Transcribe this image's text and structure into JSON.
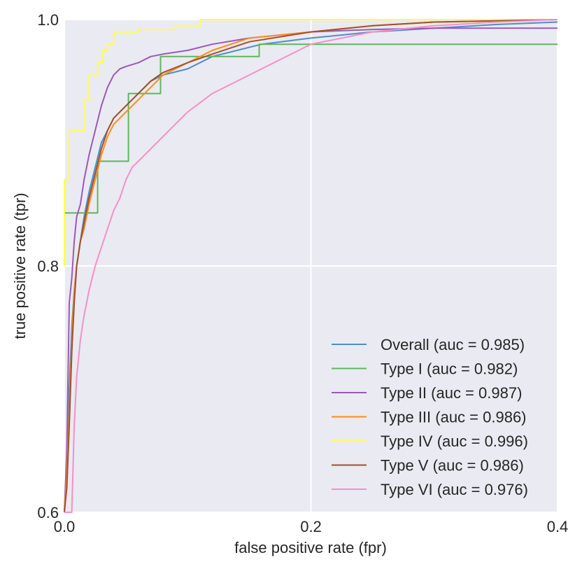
{
  "chart_data": {
    "type": "line",
    "title": "",
    "xlabel": "false positive rate (fpr)",
    "ylabel": "true positive rate (tpr)",
    "xlim": [
      0.0,
      0.4
    ],
    "ylim": [
      0.6,
      1.0
    ],
    "xticks": [
      0.0,
      0.2,
      0.4
    ],
    "xtick_labels": [
      "0.0",
      "0.2",
      "0.4"
    ],
    "yticks": [
      0.6,
      0.8,
      1.0
    ],
    "ytick_labels": [
      "0.6",
      "0.8",
      "1.0"
    ],
    "grid": true,
    "background": "#eaeaf2",
    "legend_position": "lower-right",
    "series": [
      {
        "name": "Overall (auc = 0.985)",
        "color": "#4c8fc9",
        "x": [
          0.0,
          0.002,
          0.004,
          0.006,
          0.008,
          0.01,
          0.013,
          0.016,
          0.02,
          0.025,
          0.03,
          0.035,
          0.04,
          0.05,
          0.06,
          0.07,
          0.08,
          0.1,
          0.12,
          0.14,
          0.16,
          0.2,
          0.25,
          0.3,
          0.35,
          0.4
        ],
        "y": [
          0.6,
          0.64,
          0.7,
          0.75,
          0.78,
          0.8,
          0.82,
          0.84,
          0.86,
          0.88,
          0.9,
          0.91,
          0.92,
          0.93,
          0.94,
          0.95,
          0.955,
          0.96,
          0.97,
          0.975,
          0.98,
          0.985,
          0.99,
          0.993,
          0.996,
          0.998
        ]
      },
      {
        "name": "Type I (auc = 0.982)",
        "color": "#5cb85c",
        "x": [
          0.0,
          0.0,
          0.027,
          0.027,
          0.052,
          0.052,
          0.078,
          0.078,
          0.11,
          0.11,
          0.158,
          0.158,
          0.2,
          0.2,
          0.4
        ],
        "y": [
          0.8,
          0.843,
          0.843,
          0.885,
          0.885,
          0.94,
          0.94,
          0.97,
          0.97,
          0.97,
          0.97,
          0.98,
          0.98,
          0.98,
          0.98
        ]
      },
      {
        "name": "Type II (auc = 0.987)",
        "color": "#9b59b6",
        "x": [
          0.0,
          0.002,
          0.004,
          0.006,
          0.008,
          0.01,
          0.013,
          0.016,
          0.02,
          0.025,
          0.03,
          0.035,
          0.04,
          0.045,
          0.05,
          0.06,
          0.07,
          0.08,
          0.1,
          0.12,
          0.15,
          0.2,
          0.25,
          0.3,
          0.4
        ],
        "y": [
          0.6,
          0.65,
          0.77,
          0.79,
          0.82,
          0.84,
          0.85,
          0.87,
          0.89,
          0.91,
          0.93,
          0.945,
          0.955,
          0.96,
          0.962,
          0.965,
          0.97,
          0.972,
          0.975,
          0.98,
          0.985,
          0.99,
          0.992,
          0.993,
          0.993
        ]
      },
      {
        "name": "Type III (auc = 0.986)",
        "color": "#ff8c1a",
        "x": [
          0.0,
          0.002,
          0.004,
          0.006,
          0.008,
          0.01,
          0.013,
          0.016,
          0.02,
          0.025,
          0.03,
          0.035,
          0.04,
          0.05,
          0.06,
          0.07,
          0.08,
          0.1,
          0.12,
          0.15,
          0.2,
          0.25,
          0.3,
          0.4
        ],
        "y": [
          0.6,
          0.63,
          0.68,
          0.74,
          0.78,
          0.8,
          0.82,
          0.83,
          0.85,
          0.87,
          0.89,
          0.905,
          0.915,
          0.925,
          0.935,
          0.945,
          0.955,
          0.965,
          0.975,
          0.985,
          0.99,
          0.995,
          0.998,
          1.0
        ]
      },
      {
        "name": "Type IV (auc = 0.996)",
        "color": "#ffff4d",
        "x": [
          0.0,
          0.0,
          0.004,
          0.004,
          0.008,
          0.008,
          0.016,
          0.016,
          0.02,
          0.02,
          0.027,
          0.027,
          0.031,
          0.031,
          0.035,
          0.035,
          0.04,
          0.04,
          0.06,
          0.06,
          0.09,
          0.09,
          0.11,
          0.11,
          0.4
        ],
        "y": [
          0.8,
          0.87,
          0.87,
          0.91,
          0.91,
          0.91,
          0.91,
          0.935,
          0.935,
          0.955,
          0.955,
          0.965,
          0.965,
          0.975,
          0.975,
          0.98,
          0.98,
          0.99,
          0.99,
          0.992,
          0.992,
          0.995,
          0.995,
          1.0,
          1.0
        ]
      },
      {
        "name": "Type V (auc = 0.986)",
        "color": "#a0522d",
        "x": [
          0.0,
          0.002,
          0.004,
          0.006,
          0.008,
          0.01,
          0.013,
          0.016,
          0.02,
          0.025,
          0.03,
          0.035,
          0.04,
          0.05,
          0.06,
          0.07,
          0.08,
          0.1,
          0.12,
          0.15,
          0.2,
          0.25,
          0.3,
          0.4
        ],
        "y": [
          0.6,
          0.62,
          0.67,
          0.73,
          0.77,
          0.8,
          0.82,
          0.835,
          0.855,
          0.875,
          0.895,
          0.91,
          0.92,
          0.93,
          0.94,
          0.95,
          0.957,
          0.965,
          0.972,
          0.982,
          0.99,
          0.995,
          0.998,
          1.0
        ]
      },
      {
        "name": "Type VI (auc = 0.976)",
        "color": "#f78fc7",
        "x": [
          0.0,
          0.006,
          0.008,
          0.01,
          0.013,
          0.016,
          0.02,
          0.025,
          0.03,
          0.035,
          0.04,
          0.045,
          0.05,
          0.055,
          0.06,
          0.065,
          0.07,
          0.08,
          0.09,
          0.1,
          0.12,
          0.14,
          0.16,
          0.19,
          0.2,
          0.25,
          0.3,
          0.35,
          0.4
        ],
        "y": [
          0.6,
          0.6,
          0.67,
          0.71,
          0.74,
          0.76,
          0.78,
          0.8,
          0.815,
          0.83,
          0.845,
          0.855,
          0.87,
          0.88,
          0.885,
          0.89,
          0.895,
          0.905,
          0.915,
          0.925,
          0.94,
          0.95,
          0.96,
          0.975,
          0.98,
          0.99,
          0.995,
          0.998,
          1.0
        ]
      }
    ]
  }
}
